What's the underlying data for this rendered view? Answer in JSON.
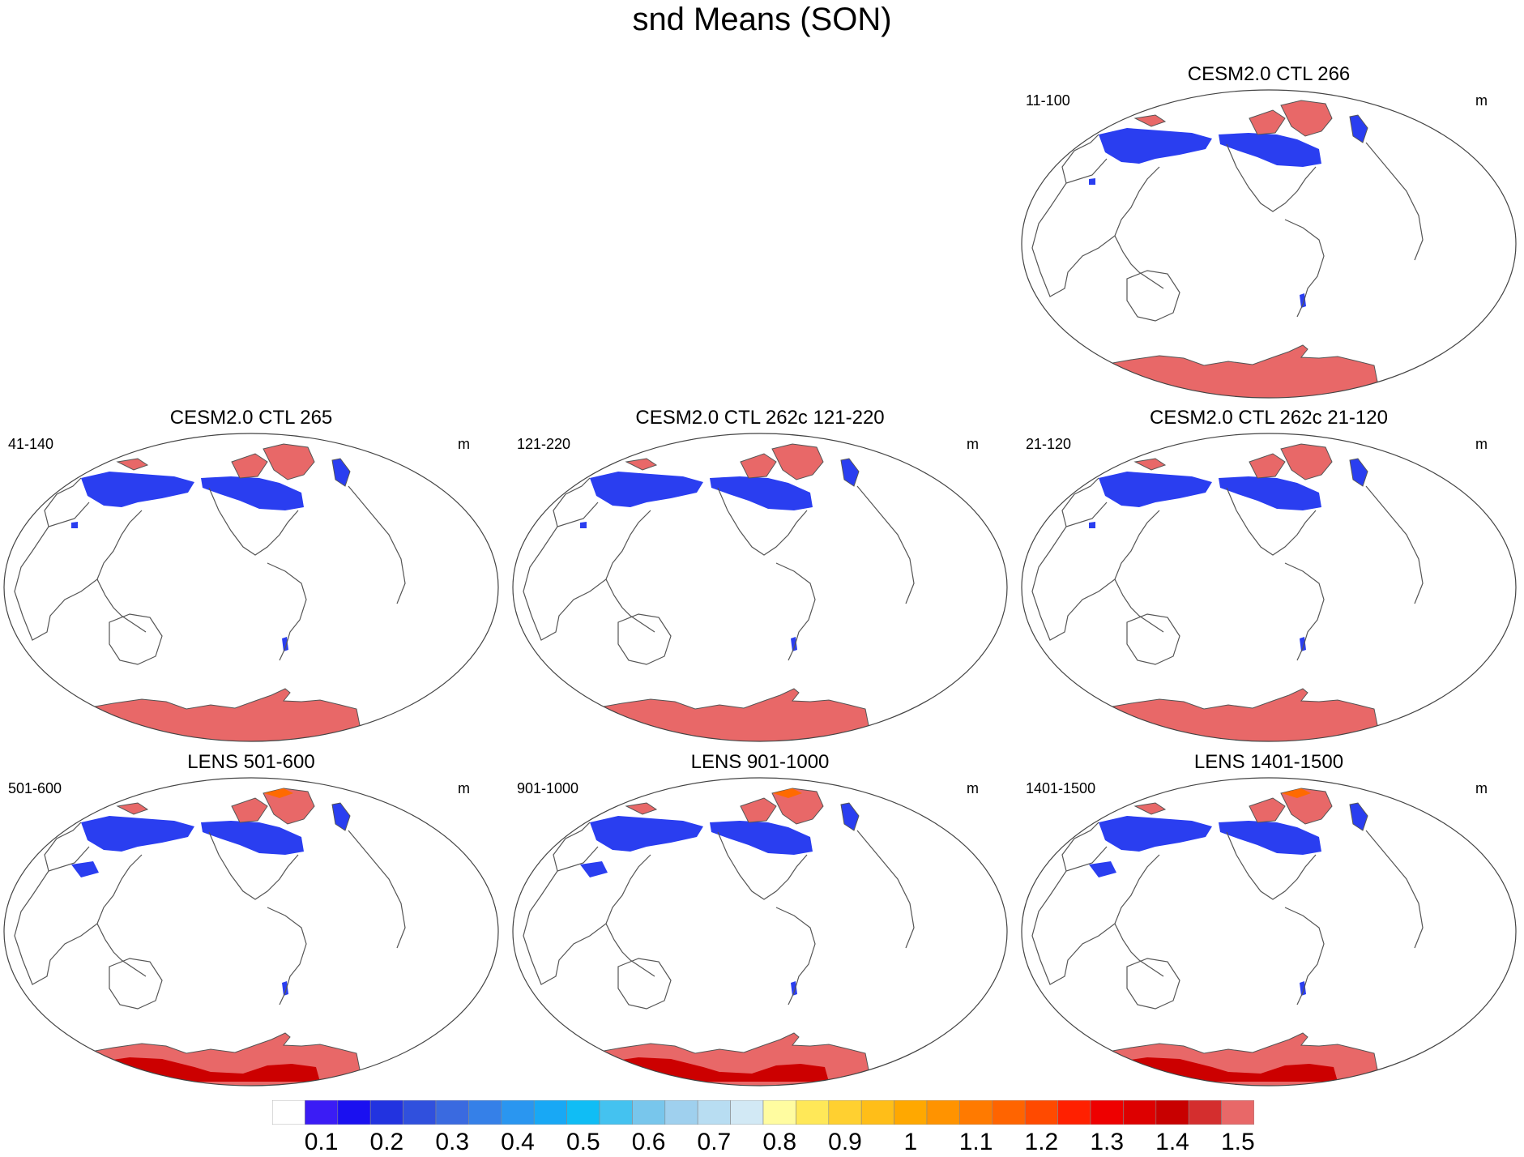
{
  "title": "snd Means (SON)",
  "panels": [
    {
      "id": "p1",
      "title": "CESM2.0 CTL 266",
      "years": "11-100",
      "unit": "m",
      "variant": "ctl"
    },
    {
      "id": "p2",
      "title": "CESM2.0 CTL 265",
      "years": "41-140",
      "unit": "m",
      "variant": "ctl"
    },
    {
      "id": "p3",
      "title": "CESM2.0 CTL 262c 121-220",
      "years": "121-220",
      "unit": "m",
      "variant": "ctl"
    },
    {
      "id": "p4",
      "title": "CESM2.0 CTL 262c 21-120",
      "years": "21-120",
      "unit": "m",
      "variant": "ctl"
    },
    {
      "id": "p5",
      "title": "LENS 501-600",
      "years": "501-600",
      "unit": "m",
      "variant": "lens"
    },
    {
      "id": "p6",
      "title": "LENS 901-1000",
      "years": "901-1000",
      "unit": "m",
      "variant": "lens"
    },
    {
      "id": "p7",
      "title": "LENS 1401-1500",
      "years": "1401-1500",
      "unit": "m",
      "variant": "lens"
    }
  ],
  "colorbar": {
    "labels": [
      "0.1",
      "0.2",
      "0.3",
      "0.4",
      "0.5",
      "0.6",
      "0.7",
      "0.8",
      "0.9",
      "1",
      "1.1",
      "1.2",
      "1.3",
      "1.4",
      "1.5"
    ],
    "colors": [
      "#ffffff",
      "#3b1cf5",
      "#1a10f0",
      "#2233e0",
      "#3050dd",
      "#3a6ae0",
      "#3580e8",
      "#2a96f0",
      "#18a8f5",
      "#10bdf5",
      "#44c2f0",
      "#78c6ec",
      "#9fd0ee",
      "#b8ddf2",
      "#d2e9f5",
      "#fffca0",
      "#ffe858",
      "#ffd030",
      "#ffbe18",
      "#ffa800",
      "#ff9300",
      "#ff7a00",
      "#ff6400",
      "#ff4a00",
      "#ff2000",
      "#ee0000",
      "#dd0000",
      "#c80000",
      "#d42e2e",
      "#e86868"
    ]
  },
  "colors": {
    "snow_low": "#2a3ef0",
    "snow_high": "#e86868",
    "deep_red": "#cc0000",
    "coast": "#555555"
  }
}
